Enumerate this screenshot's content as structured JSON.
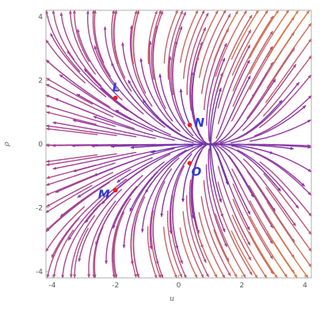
{
  "chart_data": {
    "type": "scatter",
    "title": "",
    "xlabel": "u",
    "ylabel": "ρ",
    "xlim": [
      -4.2,
      4.2
    ],
    "ylim": [
      -4.2,
      4.2
    ],
    "xticks": [
      "-4",
      "-2",
      "0",
      "2",
      "4"
    ],
    "yticks": [
      "-4",
      "-2",
      "0",
      "2",
      "4"
    ],
    "grid": false,
    "background": "stream plot of a 2D vector field",
    "colors": {
      "low": "#4a2fb5",
      "mid": "#9b3aa0",
      "high": "#f08a2a",
      "points": "#e8201a",
      "labels": "#2a3fd6"
    },
    "points": [
      {
        "name": "L",
        "x": -2.0,
        "y": 1.45
      },
      {
        "name": "N",
        "x": 0.35,
        "y": 0.6
      },
      {
        "name": "O",
        "x": 0.35,
        "y": -0.6
      },
      {
        "name": "M",
        "x": -2.0,
        "y": -1.45
      }
    ]
  }
}
